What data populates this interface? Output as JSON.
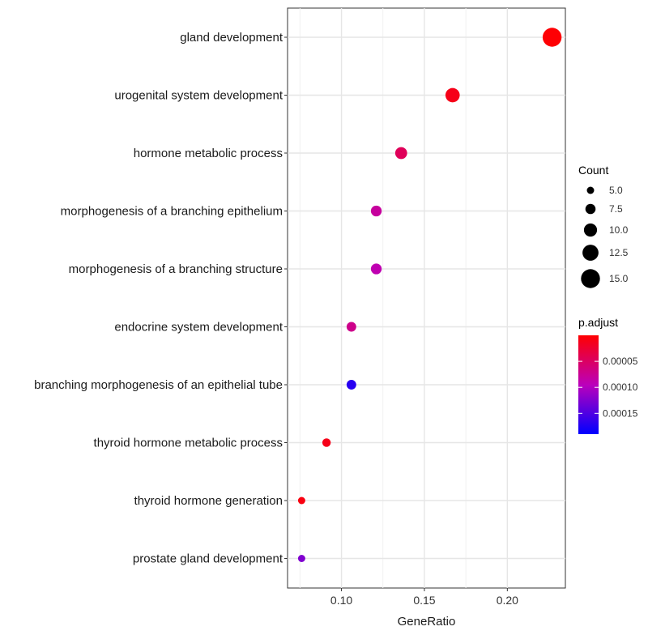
{
  "chart_data": {
    "type": "scatter",
    "xlabel": "GeneRatio",
    "ylabel": "",
    "xlim": [
      0.0675,
      0.235
    ],
    "xticks": [
      0.1,
      0.15,
      0.2
    ],
    "xtick_labels": [
      "0.10",
      "0.15",
      "0.20"
    ],
    "grid": true,
    "points": [
      {
        "term": "gland development",
        "gene_ratio": 0.227,
        "count": 15,
        "p_adjust": 2e-06
      },
      {
        "term": "urogenital system development",
        "gene_ratio": 0.167,
        "count": 11,
        "p_adjust": 1.2e-05
      },
      {
        "term": "hormone metabolic process",
        "gene_ratio": 0.136,
        "count": 9,
        "p_adjust": 4.5e-05
      },
      {
        "term": "morphogenesis of a branching epithelium",
        "gene_ratio": 0.121,
        "count": 8,
        "p_adjust": 8e-05
      },
      {
        "term": "morphogenesis of a branching structure",
        "gene_ratio": 0.121,
        "count": 8,
        "p_adjust": 9e-05
      },
      {
        "term": "endocrine system development",
        "gene_ratio": 0.106,
        "count": 7,
        "p_adjust": 7e-05
      },
      {
        "term": "branching morphogenesis of an epithelial tube",
        "gene_ratio": 0.106,
        "count": 7,
        "p_adjust": 0.00017
      },
      {
        "term": "thyroid hormone metabolic process",
        "gene_ratio": 0.091,
        "count": 6,
        "p_adjust": 1.2e-05
      },
      {
        "term": "thyroid hormone generation",
        "gene_ratio": 0.076,
        "count": 5,
        "p_adjust": 8e-06
      },
      {
        "term": "prostate gland development",
        "gene_ratio": 0.076,
        "count": 5,
        "p_adjust": 0.000125
      }
    ],
    "size_legend": {
      "title": "Count",
      "values": [
        5.0,
        7.5,
        10.0,
        12.5,
        15.0
      ],
      "labels": [
        "5.0",
        "7.5",
        "10.0",
        "12.5",
        "15.0"
      ]
    },
    "color_legend": {
      "title": "p.adjust",
      "ticks": [
        5e-05,
        0.0001,
        0.00015
      ],
      "tick_labels": [
        "0.00005",
        "0.00010",
        "0.00015"
      ],
      "range": [
        0.0,
        0.00019
      ],
      "low_color": "#ff0000",
      "high_color": "#0000ff"
    }
  }
}
